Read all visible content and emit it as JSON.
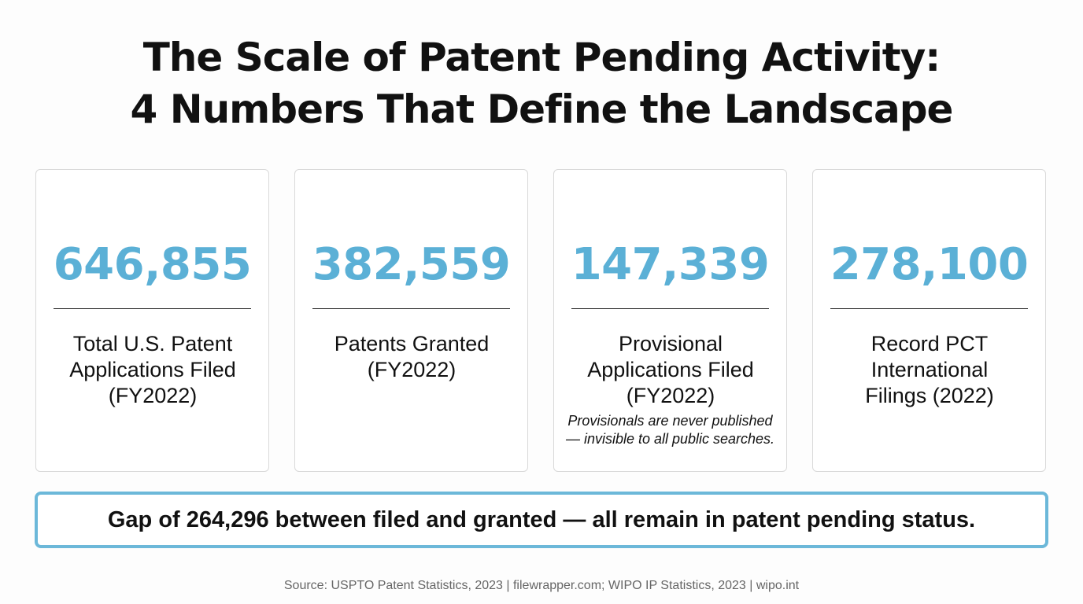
{
  "title": {
    "line1": "The Scale of Patent Pending Activity:",
    "line2": "4 Numbers That Define the Landscape"
  },
  "cards": [
    {
      "value": "646,855",
      "label": "Total U.S. Patent Applications Filed (FY2022)",
      "note": ""
    },
    {
      "value": "382,559",
      "label": "Patents Granted (FY2022)",
      "note": ""
    },
    {
      "value": "147,339",
      "label": "Provisional Applications Filed (FY2022)",
      "note": "Provisionals are never published — invisible to all public searches."
    },
    {
      "value": "278,100",
      "label": "Record PCT International Filings (2022)",
      "note": ""
    }
  ],
  "callout": {
    "text": "Gap of 264,296 between filed and granted — all remain in patent pending status."
  },
  "source": "Source: USPTO Patent Statistics, 2023 | filewrapper.com; WIPO IP Statistics, 2023 | wipo.int",
  "colors": {
    "accent": "#5bb0d6",
    "callout_border": "#6cb8d9",
    "card_border": "#d9d9d9",
    "text": "#111111",
    "source_text": "#666666"
  }
}
